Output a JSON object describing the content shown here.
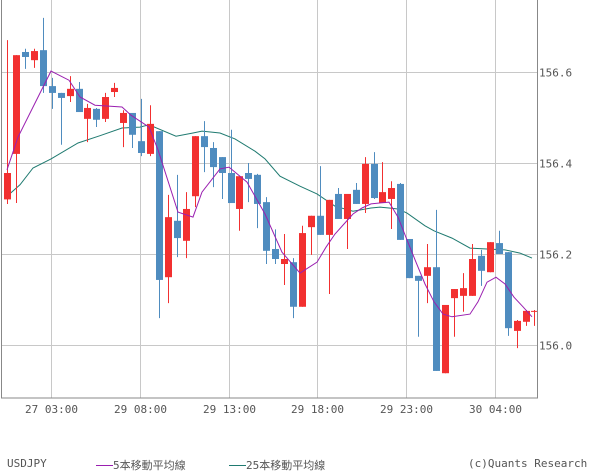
{
  "chart_data": {
    "type": "candlestick",
    "title": "",
    "symbol": "USDJPY",
    "xlabel": "",
    "ylabel": "",
    "ylim": [
      155.9,
      156.76
    ],
    "y_ticks": [
      156.0,
      156.2,
      156.4,
      156.6
    ],
    "y_tick_labels": [
      "156.0",
      "156.2",
      "156.4",
      "156.6"
    ],
    "x_tick_labels": [
      "27 03:00",
      "29 08:00",
      "29 13:00",
      "29 18:00",
      "29 23:00",
      "30 04:00"
    ],
    "x_tick_candle_index": [
      5,
      15,
      25,
      35,
      45,
      55
    ],
    "grid": true,
    "legend": [
      "5本移動平均線",
      "25本移動平均線"
    ],
    "colors": {
      "up": "#f23030",
      "down": "#4f8cbf",
      "ma5": "#9a1fb0",
      "ma25": "#1f7a70",
      "grid": "#c8c8c8",
      "border": "#888888"
    },
    "candles": [
      {
        "o": 156.32,
        "h": 156.67,
        "l": 156.31,
        "c": 156.378
      },
      {
        "o": 156.42,
        "h": 156.637,
        "l": 156.312,
        "c": 156.637
      },
      {
        "o": 156.644,
        "h": 156.651,
        "l": 156.607,
        "c": 156.633
      },
      {
        "o": 156.626,
        "h": 156.651,
        "l": 156.609,
        "c": 156.646
      },
      {
        "o": 156.648,
        "h": 156.719,
        "l": 156.554,
        "c": 156.569
      },
      {
        "o": 156.569,
        "h": 156.587,
        "l": 156.519,
        "c": 156.554
      },
      {
        "o": 156.554,
        "h": 156.554,
        "l": 156.44,
        "c": 156.543
      },
      {
        "o": 156.547,
        "h": 156.591,
        "l": 156.534,
        "c": 156.563
      },
      {
        "o": 156.563,
        "h": 156.578,
        "l": 156.512,
        "c": 156.512
      },
      {
        "o": 156.497,
        "h": 156.53,
        "l": 156.446,
        "c": 156.521
      },
      {
        "o": 156.519,
        "h": 156.521,
        "l": 156.479,
        "c": 156.495
      },
      {
        "o": 156.497,
        "h": 156.554,
        "l": 156.49,
        "c": 156.545
      },
      {
        "o": 156.556,
        "h": 156.576,
        "l": 156.545,
        "c": 156.565
      },
      {
        "o": 156.488,
        "h": 156.516,
        "l": 156.435,
        "c": 156.51
      },
      {
        "o": 156.51,
        "h": 156.51,
        "l": 156.433,
        "c": 156.462
      },
      {
        "o": 156.448,
        "h": 156.541,
        "l": 156.415,
        "c": 156.422
      },
      {
        "o": 156.42,
        "h": 156.527,
        "l": 156.415,
        "c": 156.486
      },
      {
        "o": 156.47,
        "h": 156.47,
        "l": 156.059,
        "c": 156.143
      },
      {
        "o": 156.149,
        "h": 156.33,
        "l": 156.092,
        "c": 156.281
      },
      {
        "o": 156.273,
        "h": 156.374,
        "l": 156.193,
        "c": 156.235
      },
      {
        "o": 156.229,
        "h": 156.336,
        "l": 156.191,
        "c": 156.299
      },
      {
        "o": 156.327,
        "h": 156.459,
        "l": 156.303,
        "c": 156.459
      },
      {
        "o": 156.459,
        "h": 156.492,
        "l": 156.38,
        "c": 156.435
      },
      {
        "o": 156.433,
        "h": 156.446,
        "l": 156.347,
        "c": 156.391
      },
      {
        "o": 156.413,
        "h": 156.413,
        "l": 156.321,
        "c": 156.378
      },
      {
        "o": 156.378,
        "h": 156.473,
        "l": 156.312,
        "c": 156.312
      },
      {
        "o": 156.299,
        "h": 156.371,
        "l": 156.251,
        "c": 156.371
      },
      {
        "o": 156.378,
        "h": 156.4,
        "l": 156.314,
        "c": 156.365
      },
      {
        "o": 156.374,
        "h": 156.376,
        "l": 156.257,
        "c": 156.31
      },
      {
        "o": 156.314,
        "h": 156.325,
        "l": 156.178,
        "c": 156.207
      },
      {
        "o": 156.211,
        "h": 156.254,
        "l": 156.178,
        "c": 156.189
      },
      {
        "o": 156.178,
        "h": 156.244,
        "l": 156.132,
        "c": 156.189
      },
      {
        "o": 156.182,
        "h": 156.191,
        "l": 156.059,
        "c": 156.084
      },
      {
        "o": 156.084,
        "h": 156.262,
        "l": 156.084,
        "c": 156.246
      },
      {
        "o": 156.259,
        "h": 156.284,
        "l": 156.198,
        "c": 156.284
      },
      {
        "o": 156.284,
        "h": 156.393,
        "l": 156.242,
        "c": 156.242
      },
      {
        "o": 156.242,
        "h": 156.319,
        "l": 156.112,
        "c": 156.319
      },
      {
        "o": 156.332,
        "h": 156.345,
        "l": 156.279,
        "c": 156.277
      },
      {
        "o": 156.277,
        "h": 156.332,
        "l": 156.211,
        "c": 156.332
      },
      {
        "o": 156.341,
        "h": 156.356,
        "l": 156.31,
        "c": 156.31
      },
      {
        "o": 156.31,
        "h": 156.413,
        "l": 156.29,
        "c": 156.398
      },
      {
        "o": 156.398,
        "h": 156.424,
        "l": 156.321,
        "c": 156.323
      },
      {
        "o": 156.312,
        "h": 156.402,
        "l": 156.312,
        "c": 156.336
      },
      {
        "o": 156.321,
        "h": 156.36,
        "l": 156.255,
        "c": 156.345
      },
      {
        "o": 156.354,
        "h": 156.356,
        "l": 156.231,
        "c": 156.231
      },
      {
        "o": 156.233,
        "h": 156.233,
        "l": 156.147,
        "c": 156.147
      },
      {
        "o": 156.152,
        "h": 156.152,
        "l": 156.018,
        "c": 156.141
      },
      {
        "o": 156.152,
        "h": 156.222,
        "l": 156.092,
        "c": 156.171
      },
      {
        "o": 156.171,
        "h": 156.297,
        "l": 155.943,
        "c": 155.943
      },
      {
        "o": 155.938,
        "h": 156.088,
        "l": 155.938,
        "c": 156.088
      },
      {
        "o": 156.103,
        "h": 156.123,
        "l": 156.018,
        "c": 156.123
      },
      {
        "o": 156.108,
        "h": 156.158,
        "l": 156.073,
        "c": 156.125
      },
      {
        "o": 156.108,
        "h": 156.222,
        "l": 156.108,
        "c": 156.189
      },
      {
        "o": 156.196,
        "h": 156.209,
        "l": 156.13,
        "c": 156.163
      },
      {
        "o": 156.16,
        "h": 156.226,
        "l": 156.16,
        "c": 156.226
      },
      {
        "o": 156.224,
        "h": 156.251,
        "l": 156.2,
        "c": 156.2
      },
      {
        "o": 156.204,
        "h": 156.204,
        "l": 156.02,
        "c": 156.037
      },
      {
        "o": 156.031,
        "h": 156.055,
        "l": 155.993,
        "c": 156.053
      },
      {
        "o": 156.051,
        "h": 156.077,
        "l": 156.042,
        "c": 156.075
      },
      {
        "o": 156.075,
        "h": 156.077,
        "l": 156.042,
        "c": 156.075
      }
    ],
    "ma5": [
      [
        7,
        156.385
      ],
      [
        18,
        156.457
      ],
      [
        51,
        156.602
      ],
      [
        69,
        156.582
      ],
      [
        80,
        156.545
      ],
      [
        95,
        156.527
      ],
      [
        122,
        156.523
      ],
      [
        131,
        156.505
      ],
      [
        149,
        156.479
      ],
      [
        158,
        156.429
      ],
      [
        178,
        156.292
      ],
      [
        193,
        156.281
      ],
      [
        202,
        156.336
      ],
      [
        220,
        156.387
      ],
      [
        229,
        156.391
      ],
      [
        247,
        156.358
      ],
      [
        265,
        156.288
      ],
      [
        282,
        156.204
      ],
      [
        300,
        156.158
      ],
      [
        317,
        156.182
      ],
      [
        326,
        156.215
      ],
      [
        335,
        156.244
      ],
      [
        344,
        156.266
      ],
      [
        353,
        156.288
      ],
      [
        362,
        156.301
      ],
      [
        371,
        156.31
      ],
      [
        389,
        156.314
      ],
      [
        398,
        156.281
      ],
      [
        407,
        156.231
      ],
      [
        416,
        156.182
      ],
      [
        425,
        156.134
      ],
      [
        434,
        156.095
      ],
      [
        443,
        156.068
      ],
      [
        452,
        156.062
      ],
      [
        470,
        156.068
      ],
      [
        478,
        156.095
      ],
      [
        487,
        156.138
      ],
      [
        496,
        156.149
      ],
      [
        505,
        156.134
      ],
      [
        514,
        156.105
      ],
      [
        523,
        156.084
      ],
      [
        532,
        156.062
      ]
    ],
    "ma25": [
      [
        7,
        156.327
      ],
      [
        20,
        156.352
      ],
      [
        33,
        156.389
      ],
      [
        51,
        156.409
      ],
      [
        78,
        156.444
      ],
      [
        100,
        156.46
      ],
      [
        122,
        156.477
      ],
      [
        140,
        156.479
      ],
      [
        149,
        156.484
      ],
      [
        176,
        156.459
      ],
      [
        193,
        156.466
      ],
      [
        202,
        156.47
      ],
      [
        220,
        156.466
      ],
      [
        235,
        156.453
      ],
      [
        255,
        156.426
      ],
      [
        265,
        156.409
      ],
      [
        280,
        156.371
      ],
      [
        300,
        156.349
      ],
      [
        317,
        156.332
      ],
      [
        335,
        156.305
      ],
      [
        353,
        156.294
      ],
      [
        371,
        156.301
      ],
      [
        380,
        156.303
      ],
      [
        389,
        156.301
      ],
      [
        398,
        156.299
      ],
      [
        407,
        156.29
      ],
      [
        425,
        156.262
      ],
      [
        434,
        156.251
      ],
      [
        452,
        156.235
      ],
      [
        470,
        156.213
      ],
      [
        487,
        156.211
      ],
      [
        505,
        156.209
      ],
      [
        520,
        156.202
      ],
      [
        532,
        156.191
      ]
    ]
  },
  "legend": {
    "symbol": "USDJPY",
    "ma5_label": "5本移動平均線",
    "ma25_label": "25本移動平均線",
    "credit": "(c)Quants Research"
  }
}
